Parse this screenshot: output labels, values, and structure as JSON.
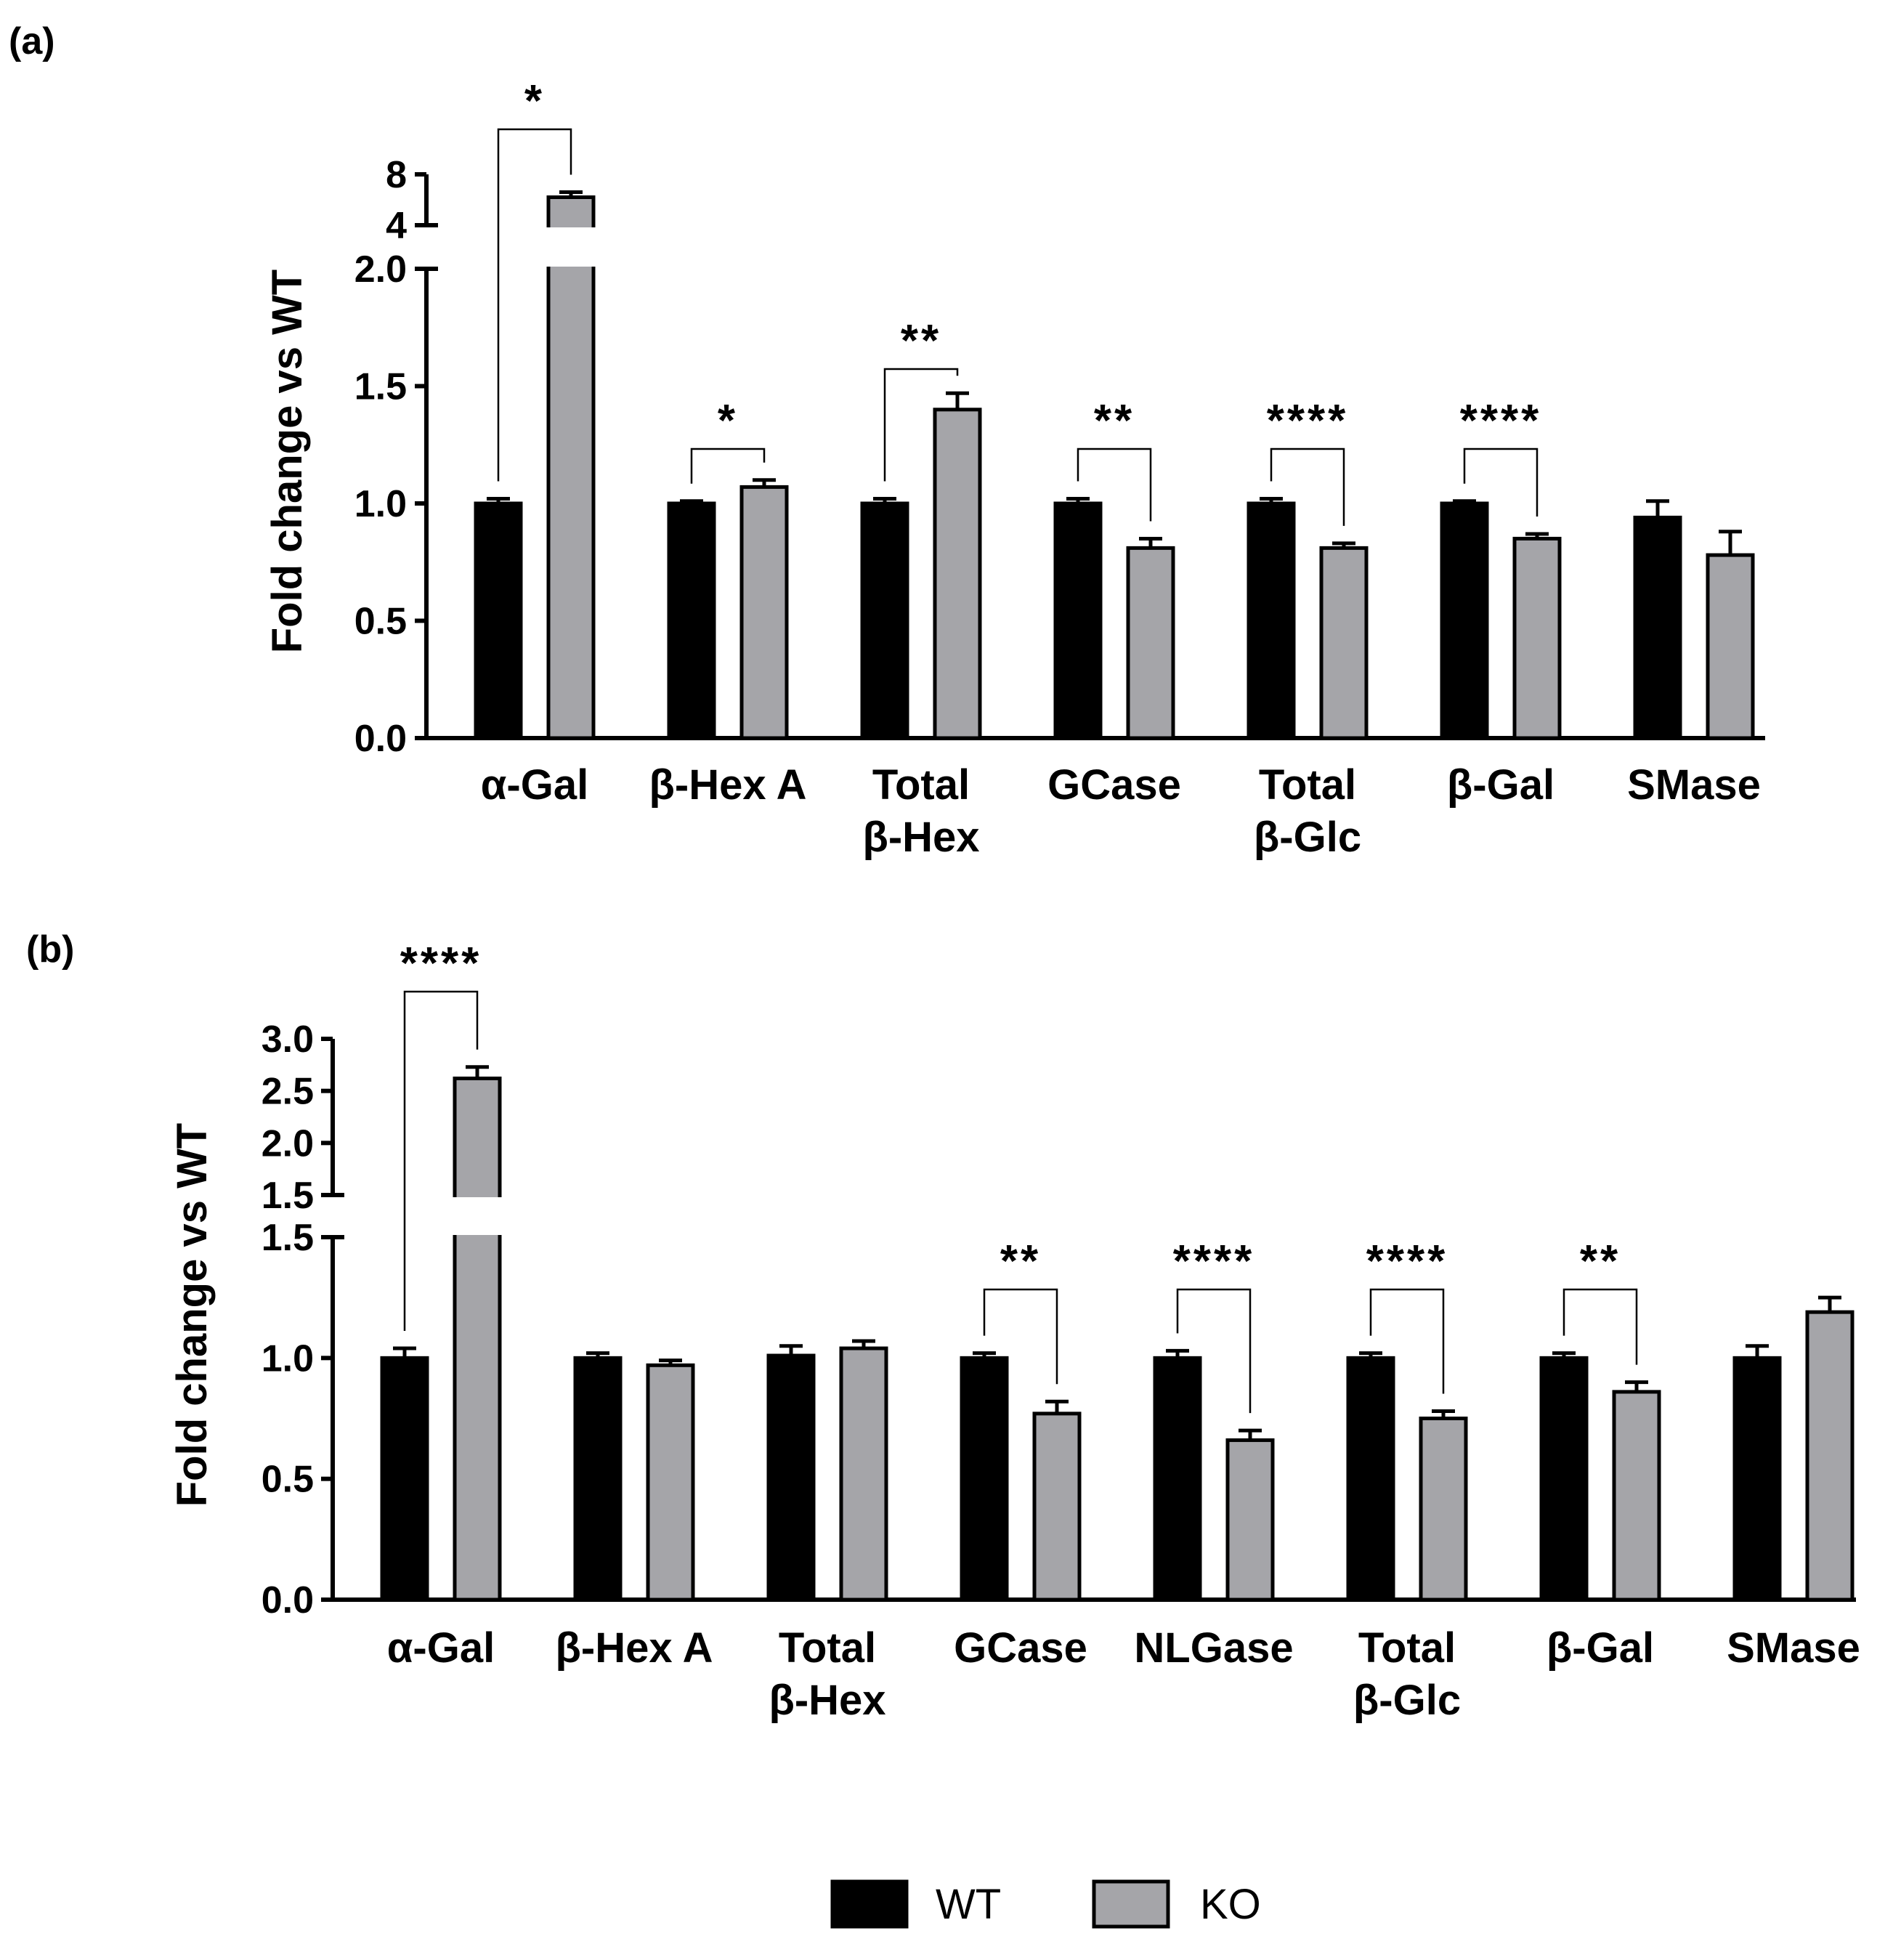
{
  "chart_data": [
    {
      "panel": "(a)",
      "type": "bar",
      "ylabel": "Fold change vs WT",
      "categories": [
        [
          "α-Gal"
        ],
        [
          "β-Hex A"
        ],
        [
          "Total",
          "β-Hex"
        ],
        [
          "GCase"
        ],
        [
          "Total",
          "β-Glc"
        ],
        [
          "β-Gal"
        ],
        [
          "SMase"
        ]
      ],
      "series": [
        {
          "name": "WT",
          "values": [
            1.0,
            1.0,
            1.0,
            1.0,
            1.0,
            1.0,
            0.94
          ],
          "errors": [
            0.02,
            0.01,
            0.02,
            0.02,
            0.02,
            0.01,
            0.07
          ]
        },
        {
          "name": "KO",
          "values": [
            6.2,
            1.07,
            1.4,
            0.81,
            0.81,
            0.85,
            0.78
          ],
          "errors": [
            0.4,
            0.03,
            0.07,
            0.04,
            0.02,
            0.02,
            0.1
          ]
        }
      ],
      "axis": {
        "lower_range": [
          0,
          2.0
        ],
        "lower_ticks": [
          "0.0",
          "0.5",
          "1.0",
          "1.5",
          "2.0"
        ],
        "upper_range": [
          4,
          8
        ],
        "upper_ticks": [
          "4",
          "8"
        ]
      },
      "significance": [
        "*",
        "*",
        "**",
        "**",
        "****",
        "****",
        ""
      ]
    },
    {
      "panel": "(b)",
      "type": "bar",
      "ylabel": "Fold change vs WT",
      "categories": [
        [
          "α-Gal"
        ],
        [
          "β-Hex A"
        ],
        [
          "Total",
          "β-Hex"
        ],
        [
          "GCase"
        ],
        [
          "NLGase"
        ],
        [
          "Total",
          "β-Glc"
        ],
        [
          "β-Gal"
        ],
        [
          "SMase"
        ]
      ],
      "series": [
        {
          "name": "WT",
          "values": [
            1.0,
            1.0,
            1.01,
            1.0,
            1.0,
            1.0,
            1.0,
            1.0
          ],
          "errors": [
            0.04,
            0.02,
            0.04,
            0.02,
            0.03,
            0.02,
            0.02,
            0.05
          ]
        },
        {
          "name": "KO",
          "values": [
            2.62,
            0.97,
            1.04,
            0.77,
            0.66,
            0.75,
            0.86,
            1.19
          ],
          "errors": [
            0.11,
            0.02,
            0.03,
            0.05,
            0.04,
            0.03,
            0.04,
            0.06
          ]
        }
      ],
      "axis": {
        "lower_range": [
          0,
          1.5
        ],
        "lower_ticks": [
          "0.0",
          "0.5",
          "1.0",
          "1.5"
        ],
        "upper_range": [
          1.5,
          3.0
        ],
        "upper_ticks": [
          "1.5",
          "2.0",
          "2.5",
          "3.0"
        ]
      },
      "significance": [
        "****",
        "",
        "",
        "**",
        "****",
        "****",
        "**",
        ""
      ]
    }
  ],
  "legend": [
    {
      "label": "WT",
      "color": "#000000"
    },
    {
      "label": "KO",
      "color": "#a5a5a9"
    }
  ],
  "colors": {
    "wt": "#000000",
    "ko": "#a5a5a9",
    "axis": "#000000"
  }
}
